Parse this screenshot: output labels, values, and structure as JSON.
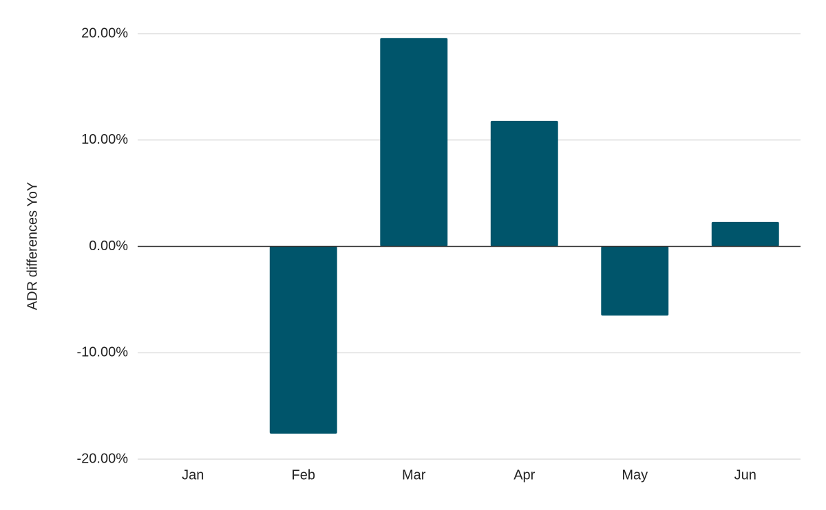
{
  "chart_data": {
    "type": "bar",
    "y_axis_label": "ADR differences YoY",
    "categories": [
      "Jan",
      "Feb",
      "Mar",
      "Apr",
      "May",
      "Jun"
    ],
    "values": [
      0,
      -17.6,
      19.6,
      11.8,
      -6.5,
      2.3
    ],
    "color": "#00556b",
    "ylim": [
      -20,
      20
    ],
    "yticks": [
      {
        "value": -20,
        "label": "-20.00%"
      },
      {
        "value": -10,
        "label": "-10.00%"
      },
      {
        "value": 0,
        "label": "0.00%"
      },
      {
        "value": 10,
        "label": "10.00%"
      },
      {
        "value": 20,
        "label": "20.00%"
      }
    ],
    "grid": true
  }
}
